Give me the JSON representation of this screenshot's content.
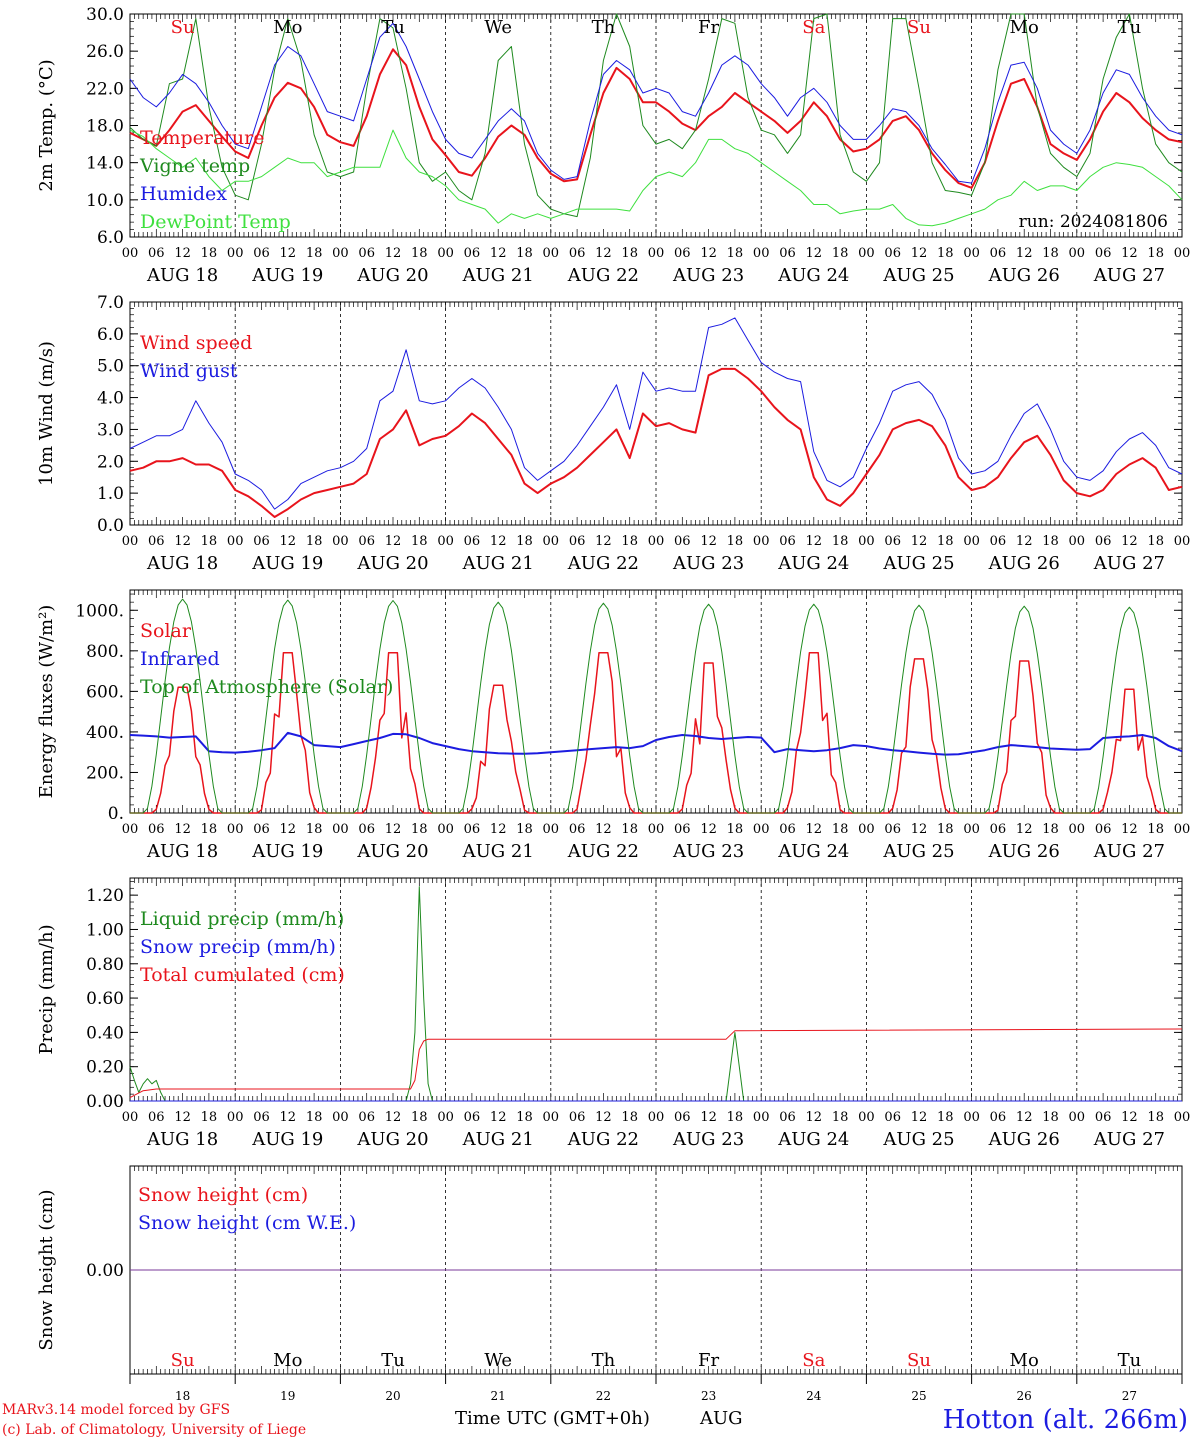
{
  "run": "run: 2024081806",
  "footer": {
    "model": "MARv3.14 model forced by GFS",
    "credit": "(c) Lab. of Climatology, University of Liege",
    "xlabel": "Time UTC (GMT+0h)",
    "month": "AUG",
    "station": "Hotton (alt. 266m)"
  },
  "days": [
    "18",
    "19",
    "20",
    "21",
    "22",
    "23",
    "24",
    "25",
    "26",
    "27"
  ],
  "day_names": [
    "Su",
    "Mo",
    "Tu",
    "We",
    "Th",
    "Fr",
    "Sa",
    "Su",
    "Mo",
    "Tu"
  ],
  "weekend": [
    true,
    false,
    false,
    false,
    false,
    false,
    true,
    true,
    false,
    false
  ],
  "hour_labels": [
    "00",
    "06",
    "12",
    "18"
  ],
  "end_hour_label": "00",
  "date_labels": [
    "AUG 18",
    "AUG 19",
    "AUG 20",
    "AUG 21",
    "AUG 22",
    "AUG 23",
    "AUG 24",
    "AUG 25",
    "AUG 26",
    "AUG 27"
  ],
  "colors": {
    "red": "#e8141c",
    "green": "#1f8a1f",
    "blue": "#1c1ce0",
    "lime": "#3fe03f",
    "purple": "#7a3a9a",
    "weekend": "#e8141c",
    "weekday": "#000000"
  },
  "chart_data": [
    {
      "type": "line",
      "ylabel": "2m Temp. (°C)",
      "ylim": [
        6,
        30
      ],
      "yticks": [
        "6.0",
        "10.0",
        "14.0",
        "18.0",
        "22.0",
        "26.0",
        "30.0"
      ],
      "ytick_values": [
        6,
        10,
        14,
        18,
        22,
        26,
        30
      ],
      "x_hours": [
        0,
        3,
        6,
        9,
        12,
        15,
        18,
        21,
        24,
        27,
        30,
        33,
        36,
        39,
        42,
        45,
        48,
        51,
        54,
        57,
        60,
        63,
        66,
        69,
        72,
        75,
        78,
        81,
        84,
        87,
        90,
        93,
        96,
        99,
        102,
        105,
        108,
        111,
        114,
        117,
        120,
        123,
        126,
        129,
        132,
        135,
        138,
        141,
        144,
        147,
        150,
        153,
        156,
        159,
        162,
        165,
        168,
        171,
        174,
        177,
        180,
        183,
        186,
        189,
        192,
        195,
        198,
        201,
        204,
        207,
        210,
        213,
        216,
        219,
        222,
        225,
        228,
        231,
        234,
        237,
        240
      ],
      "series": [
        {
          "name": "Temperature",
          "color": "red",
          "width": 2,
          "values": [
            17.2,
            16.5,
            15.8,
            17.5,
            19.5,
            20.2,
            18.5,
            16.8,
            15.2,
            14.5,
            18,
            21,
            22.6,
            22,
            20,
            17,
            16.2,
            15.8,
            19,
            23.5,
            26.2,
            24.5,
            20,
            16.5,
            14.8,
            13,
            12.6,
            14.5,
            16.8,
            18,
            17,
            14.5,
            12.8,
            12,
            12.2,
            17,
            21.5,
            24.2,
            23,
            20.5,
            20.5,
            19.5,
            18.2,
            17.5,
            19,
            20,
            21.5,
            20.5,
            19.5,
            18.5,
            17.2,
            18.5,
            20.5,
            19,
            16.5,
            15.2,
            15.5,
            16.5,
            18.5,
            19,
            17.5,
            15,
            13.2,
            11.8,
            11.3,
            14,
            18.5,
            22.5,
            23,
            20,
            16,
            15,
            14.3,
            16.5,
            19.5,
            21.5,
            20.5,
            18.8,
            17.5,
            16.5,
            16.2
          ]
        },
        {
          "name": "Vigne temp",
          "color": "green",
          "width": 1,
          "values": [
            17.8,
            16.5,
            15.8,
            22.5,
            23,
            29.5,
            20,
            13.5,
            10.5,
            10,
            16,
            24,
            29.5,
            25,
            17,
            13,
            12.5,
            13,
            22,
            29.5,
            28.5,
            22,
            14,
            12,
            13,
            11,
            10,
            15,
            25,
            26.5,
            16,
            10.5,
            9,
            8.5,
            8.2,
            14.5,
            25,
            30,
            26.5,
            18,
            16,
            16.5,
            15.5,
            17.5,
            23,
            29.5,
            29,
            21,
            17.5,
            17,
            15,
            17,
            29.5,
            30,
            17,
            13,
            12,
            14,
            29.5,
            29.5,
            22,
            14,
            11,
            10.8,
            10.5,
            14,
            24,
            30,
            30,
            20,
            15,
            13.5,
            12.5,
            15,
            23,
            27.5,
            30,
            22,
            16,
            14,
            13
          ]
        },
        {
          "name": "Humidex",
          "color": "blue",
          "width": 1,
          "values": [
            23,
            21,
            20,
            21.5,
            23.5,
            22.5,
            20.5,
            18,
            16,
            15.5,
            20,
            24.5,
            26.5,
            25.5,
            22.5,
            19.5,
            19,
            18.5,
            23,
            27.5,
            29,
            26.5,
            23,
            19.5,
            16.5,
            15,
            14.5,
            16.5,
            18.5,
            19.8,
            18.5,
            15,
            13.2,
            12.2,
            12.5,
            18.5,
            23.5,
            25,
            24,
            21.5,
            22,
            21.5,
            19.5,
            19,
            21.5,
            24.5,
            25.5,
            24.5,
            22.5,
            21,
            19,
            21,
            22,
            20.5,
            18,
            16.5,
            16.5,
            18,
            19.8,
            19.5,
            18,
            15.5,
            13.8,
            12,
            11.8,
            15.5,
            20.5,
            24.5,
            24.8,
            22,
            17.5,
            16,
            15,
            17.5,
            21.5,
            24,
            23.5,
            21,
            19,
            17.5,
            17
          ]
        },
        {
          "name": "DewPoint Temp",
          "color": "lime",
          "width": 1,
          "values": [
            17.5,
            16.8,
            15.5,
            14.5,
            13.5,
            14.5,
            12.5,
            11,
            12,
            12,
            12.5,
            13.5,
            14.5,
            14,
            14,
            12.5,
            13,
            13.5,
            13.5,
            13.5,
            17.5,
            14.5,
            13,
            12.5,
            11.5,
            10,
            9.5,
            9,
            7.5,
            8.5,
            8,
            8.5,
            8,
            8.5,
            9,
            9,
            9,
            9,
            8.8,
            11,
            12.5,
            13,
            12.5,
            14,
            16.5,
            16.5,
            15.5,
            15,
            14,
            13,
            12,
            11,
            9.5,
            9.5,
            8.5,
            8.8,
            9,
            9,
            9.5,
            8,
            7.3,
            7.2,
            7.5,
            8,
            8.5,
            9,
            10,
            10.5,
            12,
            11,
            11.5,
            11.5,
            11,
            12.5,
            13.5,
            14,
            13.8,
            13.5,
            12.5,
            11.5,
            10
          ]
        }
      ]
    },
    {
      "type": "line",
      "ylabel": "10m Wind (m/s)",
      "ylim": [
        0,
        7
      ],
      "yticks": [
        "0.0",
        "1.0",
        "2.0",
        "3.0",
        "4.0",
        "5.0",
        "6.0",
        "7.0"
      ],
      "ytick_values": [
        0,
        1,
        2,
        3,
        4,
        5,
        6,
        7
      ],
      "reference_line": 5,
      "x_hours": [
        0,
        3,
        6,
        9,
        12,
        15,
        18,
        21,
        24,
        27,
        30,
        33,
        36,
        39,
        42,
        45,
        48,
        51,
        54,
        57,
        60,
        63,
        66,
        69,
        72,
        75,
        78,
        81,
        84,
        87,
        90,
        93,
        96,
        99,
        102,
        105,
        108,
        111,
        114,
        117,
        120,
        123,
        126,
        129,
        132,
        135,
        138,
        141,
        144,
        147,
        150,
        153,
        156,
        159,
        162,
        165,
        168,
        171,
        174,
        177,
        180,
        183,
        186,
        189,
        192,
        195,
        198,
        201,
        204,
        207,
        210,
        213,
        216,
        219,
        222,
        225,
        228,
        231,
        234,
        237,
        240
      ],
      "series": [
        {
          "name": "Wind speed",
          "color": "red",
          "width": 2,
          "values": [
            1.7,
            1.8,
            2,
            2,
            2.1,
            1.9,
            1.9,
            1.7,
            1.1,
            0.9,
            0.6,
            0.25,
            0.5,
            0.8,
            1,
            1.1,
            1.2,
            1.3,
            1.6,
            2.7,
            3,
            3.6,
            2.5,
            2.7,
            2.8,
            3.1,
            3.5,
            3.2,
            2.7,
            2.2,
            1.3,
            1,
            1.3,
            1.5,
            1.8,
            2.2,
            2.6,
            3,
            2.1,
            3.5,
            3.1,
            3.2,
            3,
            2.9,
            4.7,
            4.9,
            4.9,
            4.6,
            4.2,
            3.7,
            3.3,
            3,
            1.5,
            0.8,
            0.6,
            1,
            1.6,
            2.2,
            3,
            3.2,
            3.3,
            3.1,
            2.5,
            1.5,
            1.1,
            1.2,
            1.5,
            2.1,
            2.6,
            2.8,
            2.2,
            1.4,
            1,
            0.9,
            1.1,
            1.6,
            1.9,
            2.1,
            1.8,
            1.1,
            1.2
          ]
        },
        {
          "name": "Wind gust",
          "color": "blue",
          "width": 1,
          "values": [
            2.4,
            2.6,
            2.8,
            2.8,
            3,
            3.9,
            3.2,
            2.6,
            1.6,
            1.4,
            1.1,
            0.5,
            0.8,
            1.3,
            1.5,
            1.7,
            1.8,
            2,
            2.4,
            3.9,
            4.2,
            5.5,
            3.9,
            3.8,
            3.9,
            4.3,
            4.6,
            4.3,
            3.7,
            3,
            1.8,
            1.4,
            1.7,
            2,
            2.5,
            3.1,
            3.7,
            4.4,
            3,
            4.8,
            4.2,
            4.3,
            4.2,
            4.2,
            6.2,
            6.3,
            6.5,
            5.8,
            5.1,
            4.8,
            4.6,
            4.5,
            2.3,
            1.4,
            1.2,
            1.5,
            2.4,
            3.2,
            4.2,
            4.4,
            4.5,
            4.1,
            3.3,
            2.1,
            1.6,
            1.7,
            2,
            2.8,
            3.5,
            3.8,
            3,
            2,
            1.5,
            1.4,
            1.7,
            2.3,
            2.7,
            2.9,
            2.5,
            1.8,
            1.6
          ]
        }
      ]
    },
    {
      "type": "line",
      "ylabel": "Energy fluxes (W/m²)",
      "ylim": [
        0,
        1100
      ],
      "yticks": [
        "0.",
        "200.",
        "400.",
        "600.",
        "800.",
        "1000."
      ],
      "ytick_values": [
        0,
        200,
        400,
        600,
        800,
        1000
      ],
      "series": [
        {
          "name": "Solar",
          "color": "red",
          "width": 1.5,
          "peaks": [
            620,
            790,
            790,
            630,
            790,
            740,
            790,
            760,
            750,
            610
          ]
        },
        {
          "name": "Infrared",
          "color": "blue",
          "width": 2,
          "values": [
            385,
            382,
            378,
            372,
            375,
            378,
            305,
            300,
            298,
            302,
            310,
            320,
            395,
            378,
            335,
            330,
            325,
            340,
            355,
            370,
            390,
            388,
            370,
            345,
            330,
            315,
            305,
            300,
            295,
            293,
            292,
            295,
            300,
            305,
            310,
            315,
            320,
            325,
            320,
            330,
            360,
            375,
            385,
            380,
            370,
            365,
            370,
            375,
            372,
            300,
            315,
            310,
            305,
            310,
            320,
            335,
            330,
            318,
            310,
            305,
            298,
            292,
            288,
            290,
            300,
            310,
            325,
            335,
            330,
            325,
            318,
            315,
            312,
            315,
            370,
            375,
            378,
            385,
            370,
            330,
            305
          ]
        },
        {
          "name": "Top of Atmosphere (Solar)",
          "color": "green",
          "width": 1,
          "peaks": [
            1055,
            1050,
            1048,
            1040,
            1035,
            1030,
            1030,
            1025,
            1020,
            1015
          ]
        }
      ]
    },
    {
      "type": "line",
      "ylabel": "Precip (mm/h)",
      "ylim": [
        0,
        1.3
      ],
      "yticks": [
        "0.00",
        "0.20",
        "0.40",
        "0.60",
        "0.80",
        "1.00",
        "1.20"
      ],
      "ytick_values": [
        0,
        0.2,
        0.4,
        0.6,
        0.8,
        1,
        1.2
      ],
      "series": [
        {
          "name": "Liquid precip (mm/h)",
          "color": "green",
          "width": 1,
          "points": [
            [
              0,
              0.2
            ],
            [
              1,
              0.12
            ],
            [
              2,
              0.05
            ],
            [
              3,
              0.1
            ],
            [
              4,
              0.13
            ],
            [
              5,
              0.1
            ],
            [
              6,
              0.12
            ],
            [
              7,
              0.05
            ],
            [
              8,
              0
            ],
            [
              63,
              0
            ],
            [
              64,
              0.1
            ],
            [
              65,
              0.4
            ],
            [
              66,
              1.25
            ],
            [
              67,
              0.6
            ],
            [
              68,
              0.1
            ],
            [
              69,
              0
            ],
            [
              136,
              0
            ],
            [
              137,
              0.2
            ],
            [
              138,
              0.4
            ],
            [
              139,
              0.2
            ],
            [
              140,
              0
            ],
            [
              240,
              0
            ]
          ]
        },
        {
          "name": "Snow precip (mm/h)",
          "color": "blue",
          "width": 1,
          "points": [
            [
              0,
              0
            ],
            [
              240,
              0
            ]
          ]
        },
        {
          "name": "Total cumulated (cm)",
          "color": "red",
          "width": 1,
          "points": [
            [
              0,
              0.02
            ],
            [
              3,
              0.06
            ],
            [
              6,
              0.07
            ],
            [
              64,
              0.07
            ],
            [
              65,
              0.12
            ],
            [
              66,
              0.3
            ],
            [
              67,
              0.35
            ],
            [
              68,
              0.36
            ],
            [
              136,
              0.36
            ],
            [
              138,
              0.41
            ],
            [
              240,
              0.42
            ]
          ]
        }
      ]
    },
    {
      "type": "line",
      "ylabel": "Snow height (cm)",
      "ylim": [
        -1,
        1
      ],
      "yticks": [
        "0.00"
      ],
      "ytick_values": [
        0
      ],
      "series": [
        {
          "name": "Snow height (cm)",
          "color": "red",
          "width": 1,
          "points": [
            [
              0,
              0
            ],
            [
              240,
              0
            ]
          ]
        },
        {
          "name": "Snow height (cm W.E.)",
          "color": "blue",
          "width": 1,
          "points": [
            [
              0,
              0
            ],
            [
              240,
              0
            ]
          ]
        }
      ],
      "combined_line_color": "purple"
    }
  ]
}
